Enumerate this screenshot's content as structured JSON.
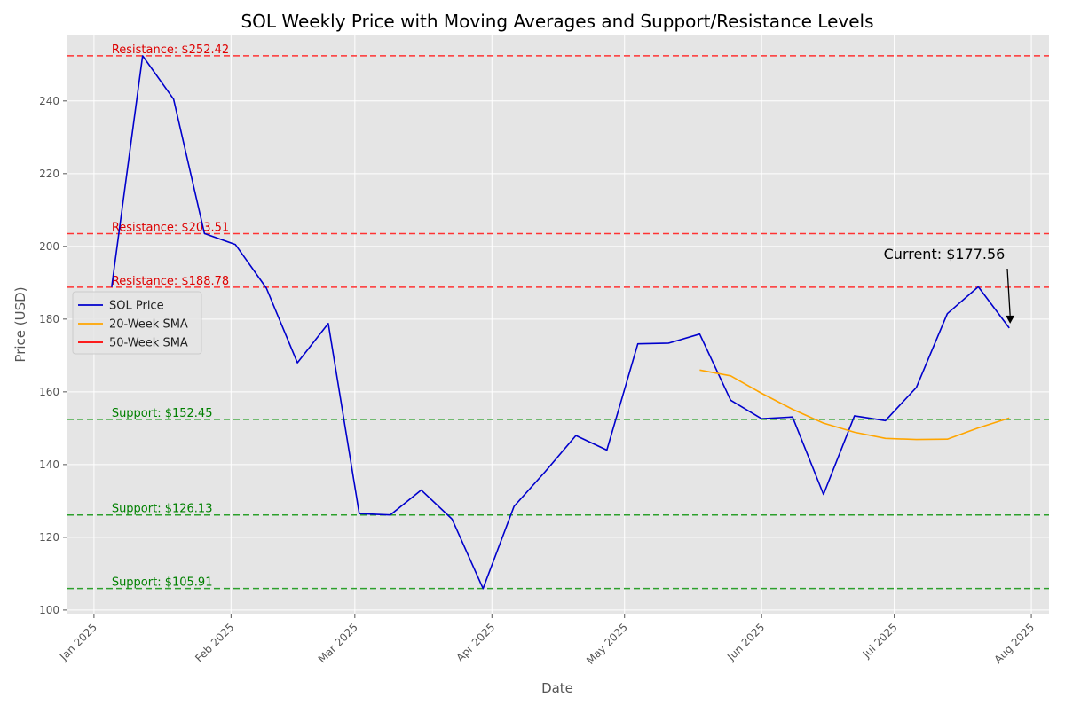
{
  "chart_data": {
    "type": "line",
    "title": "SOL Weekly Price with Moving Averages and Support/Resistance Levels",
    "xlabel": "Date",
    "ylabel": "Price (USD)",
    "grid": true,
    "legend_position": "center-left",
    "x_ticks": [
      "Jan 2025",
      "Feb 2025",
      "Mar 2025",
      "Apr 2025",
      "May 2025",
      "Jun 2025",
      "Jul 2025",
      "Aug 2025"
    ],
    "y_ticks": [
      100,
      120,
      140,
      160,
      180,
      200,
      220,
      240
    ],
    "ylim": [
      99,
      258
    ],
    "xlim": [
      "2024-12-26",
      "2025-08-05"
    ],
    "series": [
      {
        "name": "SOL Price",
        "color": "#0000cc",
        "points": [
          [
            "2025-01-05",
            188.8
          ],
          [
            "2025-01-12",
            252.42
          ],
          [
            "2025-01-19",
            240.5
          ],
          [
            "2025-01-26",
            203.51
          ],
          [
            "2025-02-02",
            200.5
          ],
          [
            "2025-02-09",
            188.5
          ],
          [
            "2025-02-16",
            168.0
          ],
          [
            "2025-02-23",
            178.8
          ],
          [
            "2025-03-02",
            126.5
          ],
          [
            "2025-03-09",
            126.13
          ],
          [
            "2025-03-16",
            133.0
          ],
          [
            "2025-03-23",
            125.0
          ],
          [
            "2025-03-30",
            105.91
          ],
          [
            "2025-04-06",
            128.5
          ],
          [
            "2025-04-13",
            138.0
          ],
          [
            "2025-04-20",
            148.0
          ],
          [
            "2025-04-27",
            144.0
          ],
          [
            "2025-05-04",
            173.2
          ],
          [
            "2025-05-11",
            173.4
          ],
          [
            "2025-05-18",
            175.9
          ],
          [
            "2025-05-25",
            157.7
          ],
          [
            "2025-06-01",
            152.6
          ],
          [
            "2025-06-08",
            153.1
          ],
          [
            "2025-06-15",
            131.8
          ],
          [
            "2025-06-22",
            153.4
          ],
          [
            "2025-06-29",
            152.1
          ],
          [
            "2025-07-06",
            161.2
          ],
          [
            "2025-07-13",
            181.5
          ],
          [
            "2025-07-20",
            188.9
          ],
          [
            "2025-07-27",
            177.56
          ]
        ]
      },
      {
        "name": "20-Week SMA",
        "color": "#ffa500",
        "points": [
          [
            "2025-05-18",
            166.0
          ],
          [
            "2025-05-25",
            164.4
          ],
          [
            "2025-06-01",
            159.6
          ],
          [
            "2025-06-08",
            155.2
          ],
          [
            "2025-06-15",
            151.4
          ],
          [
            "2025-06-22",
            148.9
          ],
          [
            "2025-06-29",
            147.2
          ],
          [
            "2025-07-06",
            146.9
          ],
          [
            "2025-07-13",
            147.0
          ],
          [
            "2025-07-20",
            150.1
          ],
          [
            "2025-07-27",
            152.8
          ]
        ]
      },
      {
        "name": "50-Week SMA",
        "color": "#ff0000",
        "points": []
      }
    ],
    "resistance_levels": [
      {
        "value": 252.42,
        "label": "Resistance: $252.42"
      },
      {
        "value": 203.51,
        "label": "Resistance: $203.51"
      },
      {
        "value": 188.78,
        "label": "Resistance: $188.78"
      }
    ],
    "support_levels": [
      {
        "value": 152.45,
        "label": "Support: $152.45"
      },
      {
        "value": 126.13,
        "label": "Support: $126.13"
      },
      {
        "value": 105.91,
        "label": "Support: $105.91"
      }
    ],
    "colors": {
      "resistance": "#ff3333",
      "resistance_text": "#dd0000",
      "support": "#2ca02c",
      "support_text": "#008000",
      "plot_background": "#e5e5e5",
      "grid": "#ffffff"
    },
    "annotation": {
      "text": "Current: $177.56",
      "date": "2025-07-27",
      "value": 177.56
    }
  }
}
